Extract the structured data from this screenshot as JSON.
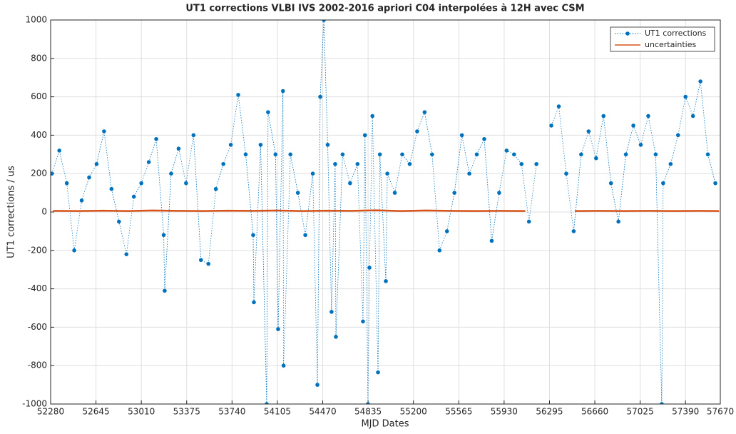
{
  "chart_data": {
    "type": "line",
    "title": "UT1 corrections VLBI IVS 2002-2016 apriori C04 interpolées à 12H avec CSM",
    "x_label": "MJD Dates",
    "y_label": "UT1 corrections / us",
    "xlim": [
      52280,
      57670
    ],
    "xticks": [
      52280,
      52645,
      53010,
      53375,
      53740,
      54105,
      54470,
      54835,
      55200,
      55565,
      55930,
      56295,
      56660,
      57025,
      57390,
      57670
    ],
    "ylim": [
      -1000,
      1000
    ],
    "yticks": [
      -1000,
      -800,
      -600,
      -400,
      -200,
      0,
      200,
      400,
      600,
      800,
      1000
    ],
    "grid": true,
    "legend": "upper right",
    "series": [
      {
        "name": "UT1 corrections",
        "color": "#0072bd",
        "style": "dotted-markers",
        "x": [
          52290,
          52350,
          52410,
          52470,
          52530,
          52590,
          52650,
          52710,
          52770,
          52830,
          52890,
          52950,
          53010,
          53070,
          53130,
          53190,
          53198,
          53250,
          53310,
          53370,
          53430,
          53490,
          53550,
          53610,
          53670,
          53730,
          53790,
          53850,
          53910,
          53916,
          53970,
          54019,
          54030,
          54090,
          54111,
          54150,
          54155,
          54210,
          54270,
          54330,
          54390,
          54427,
          54450,
          54479,
          54510,
          54541,
          54570,
          54576,
          54630,
          54690,
          54750,
          54794,
          54810,
          54834,
          54846,
          54870,
          54915,
          54930,
          54978,
          54990,
          55050,
          55110,
          55170,
          55230,
          55290,
          55350,
          55410,
          55470,
          55530,
          55590,
          55650,
          55710,
          55770,
          55830,
          55890,
          55950,
          56010,
          56070,
          56130,
          56190,
          56250,
          56310,
          56370,
          56430,
          56490,
          56550,
          56610,
          56670,
          56730,
          56790,
          56850,
          56910,
          56970,
          57030,
          57090,
          57150,
          57199,
          57210,
          57270,
          57330,
          57390,
          57450,
          57510,
          57570,
          57630
        ],
        "values": [
          200,
          320,
          150,
          -200,
          60,
          180,
          250,
          420,
          120,
          -50,
          -220,
          80,
          150,
          260,
          380,
          -120,
          -410,
          200,
          330,
          150,
          400,
          -250,
          -270,
          120,
          250,
          350,
          610,
          300,
          -120,
          -470,
          350,
          -1000,
          520,
          300,
          -610,
          630,
          -800,
          300,
          100,
          -120,
          200,
          -900,
          600,
          1000,
          350,
          -520,
          250,
          -650,
          300,
          150,
          250,
          -570,
          400,
          -1000,
          -290,
          500,
          -835,
          300,
          -360,
          200,
          100,
          300,
          250,
          420,
          520,
          300,
          -200,
          -100,
          100,
          400,
          200,
          300,
          380,
          -150,
          100,
          320,
          300,
          250,
          -50,
          250,
          null,
          450,
          550,
          200,
          -100,
          300,
          420,
          280,
          500,
          150,
          -50,
          300,
          450,
          350,
          500,
          300,
          -1000,
          150,
          250,
          400,
          600,
          500,
          680,
          300,
          150
        ]
      },
      {
        "name": "uncertainties",
        "color": "#d95319",
        "style": "solid",
        "x": [
          52300,
          52500,
          52700,
          52900,
          53100,
          53300,
          53500,
          53700,
          53900,
          54100,
          54300,
          54500,
          54700,
          54900,
          55100,
          55300,
          55500,
          55700,
          55900,
          56100,
          56300,
          56500,
          56700,
          56900,
          57100,
          57300,
          57500,
          57660
        ],
        "values": [
          6,
          5,
          7,
          5,
          8,
          6,
          5,
          7,
          6,
          8,
          5,
          7,
          6,
          9,
          5,
          8,
          6,
          5,
          6,
          5,
          null,
          5,
          6,
          5,
          6,
          5,
          6,
          5
        ]
      }
    ]
  }
}
